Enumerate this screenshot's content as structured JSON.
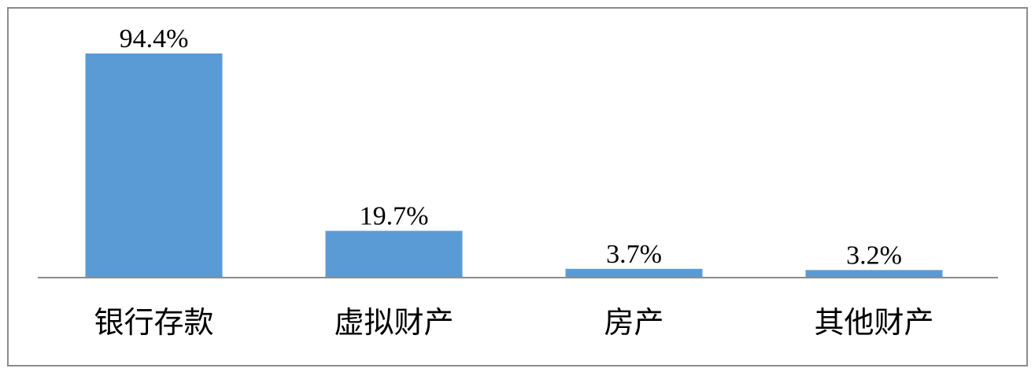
{
  "chart_data": {
    "type": "bar",
    "categories": [
      "银行存款",
      "虚拟财产",
      "房产",
      "其他财产"
    ],
    "values": [
      94.4,
      19.7,
      3.7,
      3.2
    ],
    "value_labels": [
      "94.4%",
      "19.7%",
      "3.7%",
      "3.2%"
    ],
    "color": "#5b9bd5"
  }
}
